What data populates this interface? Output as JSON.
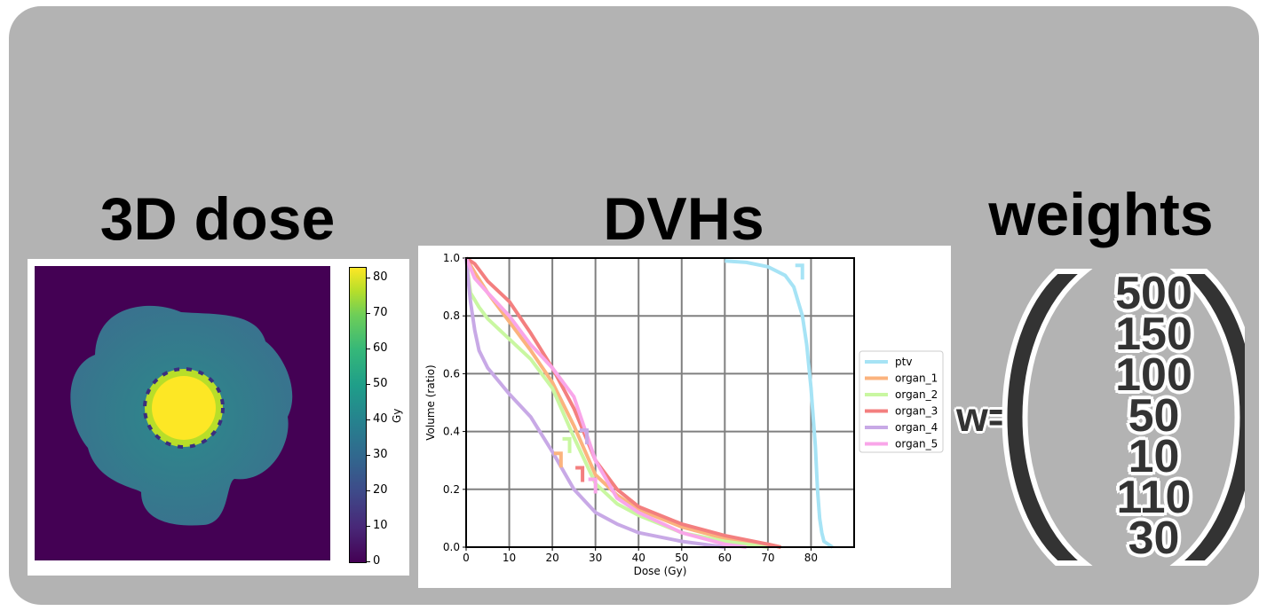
{
  "titles": {
    "dose": "3D dose",
    "dvh": "DVHs",
    "weights": "weights"
  },
  "dose_map": {
    "colorbar_label": "Gy",
    "colorbar_ticks": [
      "0",
      "10",
      "20",
      "30",
      "40",
      "50",
      "60",
      "70",
      "80"
    ],
    "colormap": "viridis"
  },
  "weights": {
    "symbol": "w=",
    "values": [
      "500",
      "150",
      "100",
      "50",
      "10",
      "110",
      "30"
    ]
  },
  "chart_data": {
    "type": "line",
    "title": "",
    "xlabel": "Dose (Gy)",
    "ylabel": "Volume (ratio)",
    "xlim": [
      0,
      90
    ],
    "ylim": [
      0,
      1
    ],
    "xticks": [
      "0",
      "10",
      "20",
      "30",
      "40",
      "50",
      "60",
      "70",
      "80"
    ],
    "yticks": [
      "0.0",
      "0.2",
      "0.4",
      "0.6",
      "0.8",
      "1.0"
    ],
    "grid": true,
    "legend_position": "right",
    "series": [
      {
        "name": "ptv",
        "color": "#a6e3f5",
        "x": [
          60,
          65,
          70,
          74,
          76,
          78,
          79,
          80,
          81,
          81.5,
          82,
          82.5,
          83,
          84,
          85
        ],
        "y": [
          0.99,
          0.985,
          0.97,
          0.94,
          0.9,
          0.8,
          0.7,
          0.55,
          0.35,
          0.2,
          0.1,
          0.05,
          0.02,
          0.01,
          0
        ]
      },
      {
        "name": "organ_1",
        "color": "#fbb37e",
        "x": [
          0,
          2,
          5,
          10,
          15,
          20,
          25,
          30,
          35,
          40,
          50,
          60,
          70,
          73
        ],
        "y": [
          1.0,
          0.95,
          0.88,
          0.78,
          0.68,
          0.57,
          0.42,
          0.25,
          0.18,
          0.13,
          0.07,
          0.03,
          0.01,
          0
        ]
      },
      {
        "name": "organ_2",
        "color": "#c9f7a1",
        "x": [
          0,
          1,
          3,
          5,
          10,
          15,
          20,
          25,
          30,
          35,
          40,
          50,
          60,
          70
        ],
        "y": [
          1.0,
          0.88,
          0.83,
          0.79,
          0.72,
          0.65,
          0.55,
          0.38,
          0.22,
          0.15,
          0.11,
          0.05,
          0.02,
          0
        ]
      },
      {
        "name": "organ_3",
        "color": "#f37f7f",
        "x": [
          0,
          2,
          5,
          10,
          15,
          20,
          25,
          30,
          35,
          40,
          50,
          60,
          70,
          73
        ],
        "y": [
          1.0,
          0.98,
          0.92,
          0.85,
          0.74,
          0.62,
          0.48,
          0.3,
          0.2,
          0.14,
          0.08,
          0.04,
          0.01,
          0
        ]
      },
      {
        "name": "organ_4",
        "color": "#c8a9e6",
        "x": [
          0,
          1,
          2,
          3,
          5,
          10,
          15,
          20,
          25,
          30,
          35,
          40,
          50,
          60
        ],
        "y": [
          1.0,
          0.85,
          0.75,
          0.68,
          0.62,
          0.53,
          0.45,
          0.33,
          0.2,
          0.12,
          0.08,
          0.05,
          0.02,
          0
        ]
      },
      {
        "name": "organ_5",
        "color": "#f9a6e9",
        "x": [
          0,
          2,
          5,
          10,
          15,
          20,
          25,
          30,
          35,
          40,
          50,
          60,
          65
        ],
        "y": [
          1.0,
          0.93,
          0.88,
          0.8,
          0.7,
          0.62,
          0.52,
          0.3,
          0.17,
          0.12,
          0.05,
          0.01,
          0
        ]
      }
    ],
    "constraint_markers": [
      {
        "series": "ptv",
        "dose": 78,
        "volume": 0.95
      },
      {
        "series": "organ_1",
        "dose": 22,
        "volume": 0.3
      },
      {
        "series": "organ_2",
        "dose": 24,
        "volume": 0.35
      },
      {
        "series": "organ_3",
        "dose": 27,
        "volume": 0.25
      },
      {
        "series": "organ_4",
        "dose": 28,
        "volume": 0.38
      },
      {
        "series": "organ_5",
        "dose": 30,
        "volume": 0.21
      }
    ]
  }
}
